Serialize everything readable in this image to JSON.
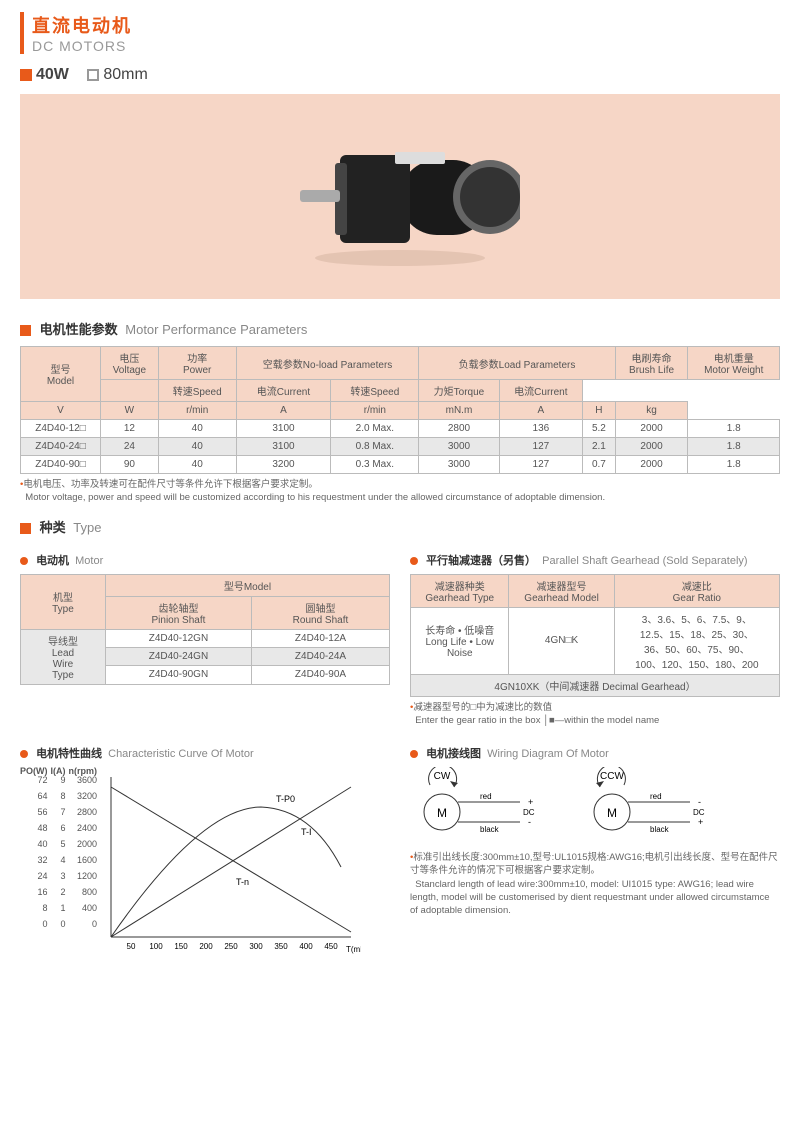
{
  "header": {
    "cn": "直流电动机",
    "en": "DC MOTORS"
  },
  "subhead": {
    "power": "40W",
    "size": "80mm"
  },
  "perfTitle": {
    "cn": "电机性能参数",
    "en": "Motor Performance Parameters"
  },
  "perfTable": {
    "h_model_cn": "型号",
    "h_model_en": "Model",
    "h_volt_cn": "电压",
    "h_volt_en": "Voltage",
    "h_power_cn": "功率",
    "h_power_en": "Power",
    "h_noload_cn": "空载参数No-load Parameters",
    "h_load_cn": "负载参数Load Parameters",
    "h_brush_cn": "电刷寿命",
    "h_brush_en": "Brush Life",
    "h_weight_cn": "电机重量",
    "h_weight_en": "Motor Weight",
    "h_speed_cn": "转速Speed",
    "h_curr_cn": "电流Current",
    "h_torq_cn": "力矩Torque",
    "u_v": "V",
    "u_w": "W",
    "u_rmin": "r/min",
    "u_a": "A",
    "u_mnm": "mN.m",
    "u_h": "H",
    "u_kg": "kg",
    "r1_model": "Z4D40-12□",
    "r1_v": "12",
    "r1_w": "40",
    "r1_nls": "3100",
    "r1_nlc": "2.0 Max.",
    "r1_ls": "2800",
    "r1_lt": "136",
    "r1_lc": "5.2",
    "r1_b": "2000",
    "r1_kg": "1.8",
    "r2_model": "Z4D40-24□",
    "r2_v": "24",
    "r2_w": "40",
    "r2_nls": "3100",
    "r2_nlc": "0.8 Max.",
    "r2_ls": "3000",
    "r2_lt": "127",
    "r2_lc": "2.1",
    "r2_b": "2000",
    "r2_kg": "1.8",
    "r3_model": "Z4D40-90□",
    "r3_v": "90",
    "r3_w": "40",
    "r3_nls": "3200",
    "r3_nlc": "0.3 Max.",
    "r3_ls": "3000",
    "r3_lt": "127",
    "r3_lc": "0.7",
    "r3_b": "2000",
    "r3_kg": "1.8"
  },
  "perfNoteCn": "电机电压、功率及转速可在配件尺寸等条件允许下根据客户要求定制。",
  "perfNoteEn": "Motor voltage, power and speed will be customized according to his requestment under the allowed circumstance of adoptable dimension.",
  "typeTitle": {
    "cn": "种类",
    "en": "Type"
  },
  "motorSub": {
    "cn": "电动机",
    "en": "Motor"
  },
  "gearSub": {
    "cn": "平行轴减速器（另售）",
    "en": "Parallel Shaft Gearhead (Sold Separately)"
  },
  "motorTable": {
    "h_type_cn": "机型",
    "h_type_en": "Type",
    "h_model": "型号Model",
    "h_pinion_cn": "齿轮轴型",
    "h_pinion_en": "Pinion Shaft",
    "h_round_cn": "圆轴型",
    "h_round_en": "Round Shaft",
    "lead_cn": "导线型",
    "lead_en1": "Lead",
    "lead_en2": "Wire",
    "lead_en3": "Type",
    "r1p": "Z4D40-12GN",
    "r1r": "Z4D40-12A",
    "r2p": "Z4D40-24GN",
    "r2r": "Z4D40-24A",
    "r3p": "Z4D40-90GN",
    "r3r": "Z4D40-90A"
  },
  "gearTable": {
    "h_type_cn": "减速器种类",
    "h_type_en": "Gearhead Type",
    "h_model_cn": "减速器型号",
    "h_model_en": "Gearhead Model",
    "h_ratio_cn": "减速比",
    "h_ratio_en": "Gear Ratio",
    "type_cn": "长寿命 • 低噪音",
    "type_en1": "Long Life • Low",
    "type_en2": "Noise",
    "model": "4GN□K",
    "ratio1": "3、3.6、5、6、7.5、9、",
    "ratio2": "12.5、15、18、25、30、",
    "ratio3": "36、50、60、75、90、",
    "ratio4": "100、120、150、180、200",
    "decimal": "4GN10XK（中间减速器 Decimal Gearhead）"
  },
  "gearNoteCn": "减速器型号的□中为减速比的数值",
  "gearNoteEn": "Enter the gear ratio in the box │■—within the model name",
  "curveSub": {
    "cn": "电机特性曲线",
    "en": "Characteristic Curve Of Motor"
  },
  "wiringSub": {
    "cn": "电机接线图",
    "en": "Wiring Diagram Of Motor"
  },
  "curve": {
    "axis_po": "PO(W)",
    "axis_ia": "I(A)",
    "axis_n": "n(rpm)",
    "po_vals": [
      "72",
      "64",
      "56",
      "48",
      "40",
      "32",
      "24",
      "16",
      "8",
      "0"
    ],
    "ia_vals": [
      "9",
      "8",
      "7",
      "6",
      "5",
      "4",
      "3",
      "2",
      "1",
      "0"
    ],
    "n_vals": [
      "3600",
      "3200",
      "2800",
      "2400",
      "2000",
      "1600",
      "1200",
      "800",
      "400",
      "0"
    ],
    "x_vals": [
      "50",
      "100",
      "150",
      "200",
      "250",
      "300",
      "350",
      "400",
      "450"
    ],
    "x_unit": "T(mN.m)",
    "lbl_tpo": "T-P0",
    "lbl_ti": "T-I",
    "lbl_tn": "T-n"
  },
  "wiring": {
    "cw": "CW",
    "ccw": "CCW",
    "m": "M",
    "red": "red",
    "black": "black",
    "dc": "DC",
    "plus": "+",
    "minus": "-"
  },
  "wiringNoteCn": "标准引出线长度:300mm±10,型号:UL1015规格:AWG16;电机引出线长度、型号在配件尺寸等条件允许的情况下可根据客户要求定制。",
  "wiringNoteEn": "Stanclard length of lead wire:300mm±10, model: UI1015 type: AWG16; lead wire length, model will be customerised by dient requestmant under allowed  circumstamce of  adoptable  dimension."
}
